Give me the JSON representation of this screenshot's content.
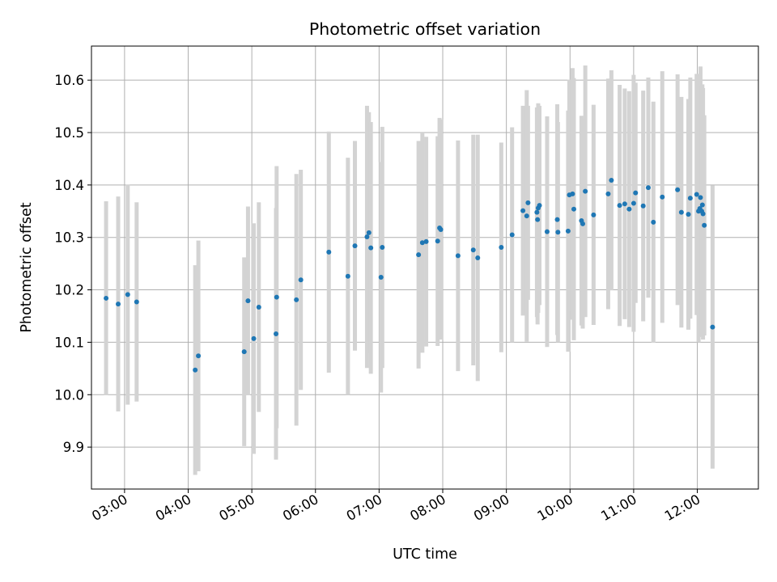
{
  "chart_data": {
    "type": "scatter",
    "title": "Photometric offset variation",
    "xlabel": "UTC time",
    "ylabel": "Photometric offset",
    "x_tick_labels": [
      "03:00",
      "04:00",
      "05:00",
      "06:00",
      "07:00",
      "08:00",
      "09:00",
      "10:00",
      "11:00",
      "12:00"
    ],
    "x_tick_values_h": [
      3,
      4,
      5,
      6,
      7,
      8,
      9,
      10,
      11,
      12
    ],
    "y_tick_labels": [
      "9.9",
      "10.0",
      "10.1",
      "10.2",
      "10.3",
      "10.4",
      "10.5",
      "10.6"
    ],
    "y_tick_values": [
      9.9,
      10.0,
      10.1,
      10.2,
      10.3,
      10.4,
      10.5,
      10.6
    ],
    "xlim_h": [
      2.48,
      12.96
    ],
    "ylim": [
      9.82,
      10.665
    ],
    "grid": true,
    "marker_color": "#1f77b4",
    "errorbar_color": "#d3d3d3",
    "x_unit": "hours UTC",
    "x": [
      2.71,
      2.9,
      3.05,
      3.19,
      4.11,
      4.16,
      4.88,
      4.94,
      5.03,
      5.11,
      5.38,
      5.39,
      5.7,
      5.77,
      6.21,
      6.51,
      6.62,
      6.81,
      6.84,
      6.87,
      7.03,
      7.05,
      7.62,
      7.68,
      7.74,
      7.92,
      7.95,
      7.97,
      8.24,
      8.48,
      8.55,
      8.92,
      9.09,
      9.26,
      9.32,
      9.34,
      9.48,
      9.49,
      9.5,
      9.52,
      9.64,
      9.8,
      9.81,
      9.97,
      9.99,
      10.04,
      10.06,
      10.18,
      10.2,
      10.24,
      10.37,
      10.6,
      10.65,
      10.78,
      10.86,
      10.93,
      11.0,
      11.03,
      11.15,
      11.23,
      11.31,
      11.45,
      11.69,
      11.75,
      11.86,
      11.89,
      11.99,
      12.02,
      12.04,
      12.05,
      12.07,
      12.08,
      12.09,
      12.11,
      12.24
    ],
    "y": [
      10.184,
      10.173,
      10.191,
      10.177,
      10.047,
      10.074,
      10.082,
      10.179,
      10.107,
      10.167,
      10.116,
      10.186,
      10.181,
      10.219,
      10.272,
      10.226,
      10.284,
      10.301,
      10.309,
      10.28,
      10.224,
      10.281,
      10.267,
      10.29,
      10.292,
      10.293,
      10.318,
      10.315,
      10.265,
      10.276,
      10.261,
      10.281,
      10.305,
      10.351,
      10.341,
      10.366,
      10.348,
      10.334,
      10.356,
      10.361,
      10.311,
      10.334,
      10.31,
      10.312,
      10.381,
      10.383,
      10.354,
      10.332,
      10.326,
      10.388,
      10.343,
      10.383,
      10.409,
      10.361,
      10.364,
      10.354,
      10.365,
      10.385,
      10.36,
      10.395,
      10.329,
      10.377,
      10.391,
      10.348,
      10.344,
      10.375,
      10.382,
      10.35,
      10.355,
      10.376,
      10.35,
      10.362,
      10.345,
      10.323,
      10.129
    ],
    "err": [
      0.185,
      0.205,
      0.21,
      0.19,
      0.2,
      0.22,
      0.18,
      0.18,
      0.22,
      0.2,
      0.24,
      0.25,
      0.24,
      0.21,
      0.23,
      0.226,
      0.2,
      0.25,
      0.23,
      0.24,
      0.22,
      0.23,
      0.217,
      0.21,
      0.2,
      0.2,
      0.21,
      0.21,
      0.22,
      0.22,
      0.235,
      0.2,
      0.205,
      0.2,
      0.24,
      0.185,
      0.2,
      0.2,
      0.2,
      0.19,
      0.22,
      0.22,
      0.21,
      0.23,
      0.22,
      0.24,
      0.25,
      0.2,
      0.2,
      0.24,
      0.21,
      0.22,
      0.21,
      0.23,
      0.22,
      0.225,
      0.245,
      0.21,
      0.22,
      0.21,
      0.23,
      0.24,
      0.22,
      0.22,
      0.22,
      0.23,
      0.23,
      0.25,
      0.24,
      0.25,
      0.24,
      0.23,
      0.24,
      0.21,
      0.27
    ]
  }
}
